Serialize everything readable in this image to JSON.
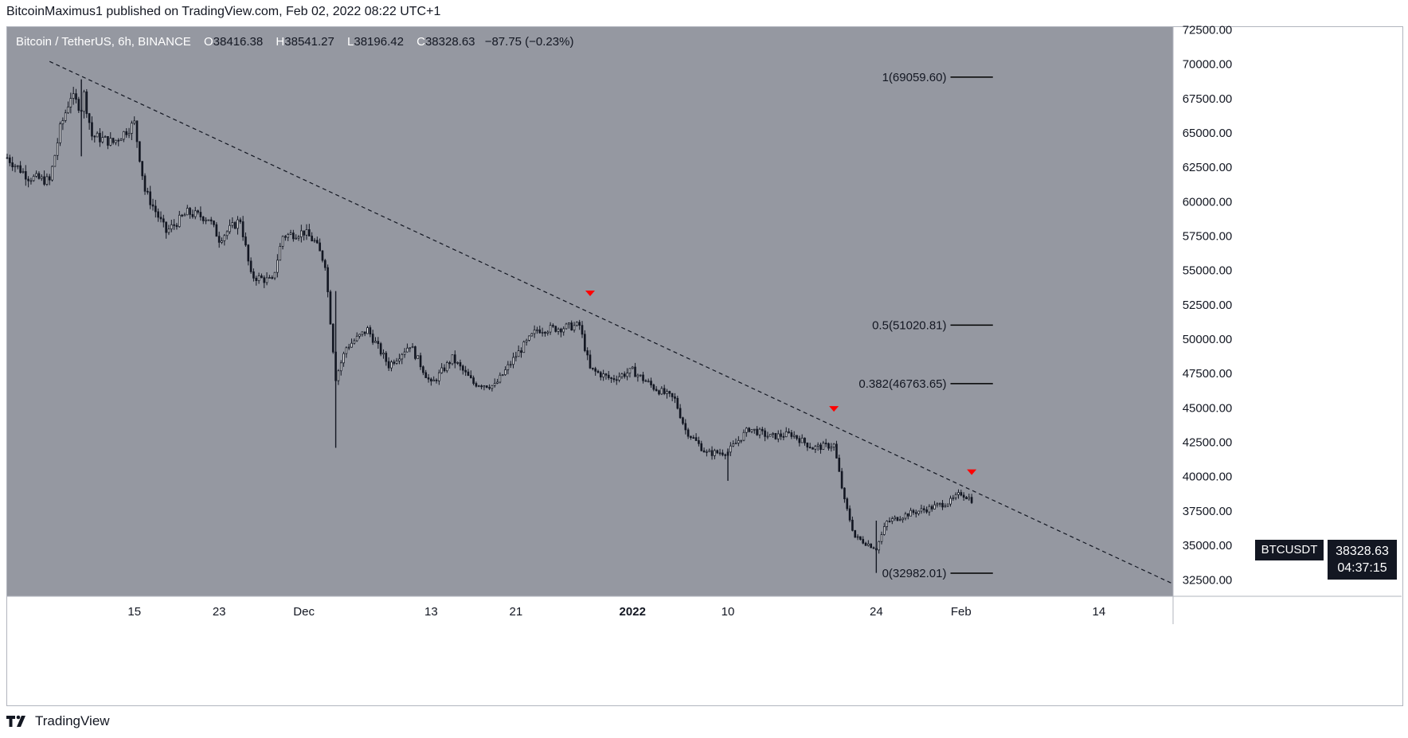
{
  "header": {
    "publisher": "BitcoinMaximus1 published on TradingView.com, Feb 02, 2022 08:22 UTC+1"
  },
  "legend": {
    "symbol": "Bitcoin / TetherUS, 6h, BINANCE",
    "open_label": "O",
    "open": "38416.38",
    "high_label": "H",
    "high": "38541.27",
    "low_label": "L",
    "low": "38196.42",
    "close_label": "C",
    "close": "38328.63",
    "change": "−87.75 (−0.23%)"
  },
  "currency_badge": "USDT",
  "symbol_tag": "BTCUSDT",
  "price_tag": {
    "price": "38328.63",
    "countdown": "04:37:15"
  },
  "footer": {
    "brand": "TradingView"
  },
  "colors": {
    "plot_bg": "#9598a1",
    "candle": "#131722",
    "markers": "#ff0000",
    "axis_text": "#131722"
  },
  "chart_data": {
    "type": "candlestick",
    "yaxis": {
      "ylim": [
        31300,
        72700
      ],
      "ticks": [
        32500,
        35000,
        37500,
        40000,
        42500,
        45000,
        47500,
        50000,
        52500,
        55000,
        57500,
        60000,
        62500,
        65000,
        67500,
        70000,
        72500
      ],
      "tick_labels": [
        "32500.00",
        "35000.00",
        "37500.00",
        "40000.00",
        "42500.00",
        "45000.00",
        "47500.00",
        "50000.00",
        "52500.00",
        "55000.00",
        "57500.00",
        "60000.00",
        "62500.00",
        "65000.00",
        "67500.00",
        "70000.00",
        "72500.00"
      ]
    },
    "xaxis": {
      "tick_labels": [
        "15",
        "23",
        "Dec",
        "13",
        "21",
        "2022",
        "10",
        "24",
        "Feb",
        "14"
      ],
      "tick_dates": [
        "2021-11-15",
        "2021-11-23",
        "2021-12-01",
        "2021-12-13",
        "2021-12-21",
        "2022-01-01",
        "2022-01-10",
        "2022-01-24",
        "2022-02-01",
        "2022-02-14"
      ],
      "range": [
        "2021-11-03",
        "2022-02-21"
      ]
    },
    "price_path": [
      [
        "2021-11-03",
        63200
      ],
      [
        "2021-11-05",
        61800
      ],
      [
        "2021-11-07",
        61500
      ],
      [
        "2021-11-08",
        65300
      ],
      [
        "2021-11-09",
        67700
      ],
      [
        "2021-11-10",
        66800
      ],
      [
        "2021-11-10",
        68800
      ],
      [
        "2021-11-11",
        64800
      ],
      [
        "2021-11-13",
        64300
      ],
      [
        "2021-11-15",
        65700
      ],
      [
        "2021-11-16",
        60800
      ],
      [
        "2021-11-18",
        57800
      ],
      [
        "2021-11-20",
        59200
      ],
      [
        "2021-11-22",
        58800
      ],
      [
        "2021-11-23",
        57300
      ],
      [
        "2021-11-25",
        58700
      ],
      [
        "2021-11-26",
        54600
      ],
      [
        "2021-11-28",
        54200
      ],
      [
        "2021-11-29",
        57500
      ],
      [
        "2021-12-01",
        57800
      ],
      [
        "2021-12-02",
        57100
      ],
      [
        "2021-12-03",
        55500
      ],
      [
        "2021-12-04",
        47200
      ],
      [
        "2021-12-05",
        49400
      ],
      [
        "2021-12-07",
        50700
      ],
      [
        "2021-12-09",
        48100
      ],
      [
        "2021-12-11",
        49600
      ],
      [
        "2021-12-13",
        46700
      ],
      [
        "2021-12-15",
        48600
      ],
      [
        "2021-12-17",
        46800
      ],
      [
        "2021-12-19",
        46600
      ],
      [
        "2021-12-21",
        48800
      ],
      [
        "2021-12-23",
        50700
      ],
      [
        "2021-12-25",
        50800
      ],
      [
        "2021-12-27",
        51000
      ],
      [
        "2021-12-28",
        47800
      ],
      [
        "2021-12-30",
        47100
      ],
      [
        "2022-01-01",
        47700
      ],
      [
        "2022-01-03",
        46500
      ],
      [
        "2022-01-05",
        45600
      ],
      [
        "2022-01-06",
        43400
      ],
      [
        "2022-01-08",
        41700
      ],
      [
        "2022-01-10",
        41800
      ],
      [
        "2022-01-12",
        43500
      ],
      [
        "2022-01-14",
        42900
      ],
      [
        "2022-01-16",
        43100
      ],
      [
        "2022-01-18",
        42100
      ],
      [
        "2022-01-20",
        42300
      ],
      [
        "2022-01-21",
        38200
      ],
      [
        "2022-01-22",
        35600
      ],
      [
        "2022-01-24",
        34800
      ],
      [
        "2022-01-25",
        36700
      ],
      [
        "2022-01-27",
        37300
      ],
      [
        "2022-01-29",
        37700
      ],
      [
        "2022-01-31",
        38200
      ],
      [
        "2022-02-01",
        38800
      ],
      [
        "2022-02-02",
        38328.63
      ]
    ],
    "trendline": {
      "start": [
        "2021-11-07",
        70200
      ],
      "end": [
        "2022-02-21",
        32200
      ],
      "style": "dashed"
    },
    "fib_levels": [
      {
        "label": "1(69059.60)",
        "value": 69059.6
      },
      {
        "label": "0.5(51020.81)",
        "value": 51020.81
      },
      {
        "label": "0.382(46763.65)",
        "value": 46763.65
      },
      {
        "label": "0(32982.01)",
        "value": 32982.01
      }
    ],
    "fib_range": [
      "2022-01-31",
      "2022-02-04"
    ],
    "markers": [
      {
        "date": "2021-12-28",
        "value": 53300,
        "shape": "down-triangle"
      },
      {
        "date": "2022-01-20",
        "value": 44900,
        "shape": "down-triangle"
      },
      {
        "date": "2022-02-02",
        "value": 40300,
        "shape": "down-triangle"
      }
    ],
    "last_price": 38328.63
  }
}
